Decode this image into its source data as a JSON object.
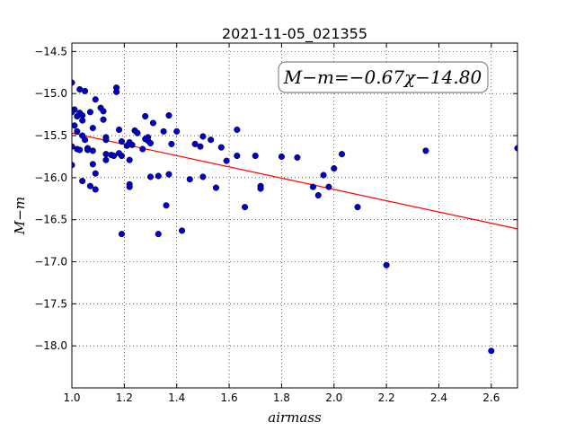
{
  "chart_data": {
    "type": "scatter",
    "title": "2021-11-05_021355",
    "xlabel": "airmass",
    "ylabel": "M−m",
    "xlim": [
      1.0,
      2.7
    ],
    "ylim": [
      -18.5,
      -14.4
    ],
    "x_ticks": [
      1.0,
      1.2,
      1.4,
      1.6,
      1.8,
      2.0,
      2.2,
      2.4,
      2.6
    ],
    "y_ticks": [
      -14.5,
      -15.0,
      -15.5,
      -16.0,
      -16.5,
      -17.0,
      -17.5,
      -18.0
    ],
    "x_tick_labels": [
      "1.0",
      "1.2",
      "1.4",
      "1.6",
      "1.8",
      "2.0",
      "2.2",
      "2.4",
      "2.6"
    ],
    "y_tick_labels": [
      "−14.5",
      "−15.0",
      "−15.5",
      "−16.0",
      "−16.5",
      "−17.0",
      "−17.5",
      "−18.0"
    ],
    "grid": true,
    "annotation": "M−m=−0.67χ−14.80",
    "fit_line": {
      "slope": -0.67,
      "intercept": -14.8,
      "color": "#ff0000"
    },
    "marker_color": "#0000cc",
    "points": [
      [
        1.0,
        -14.87
      ],
      [
        1.01,
        -15.19
      ],
      [
        1.02,
        -15.27
      ],
      [
        1.0,
        -15.22
      ],
      [
        1.01,
        -15.38
      ],
      [
        1.02,
        -15.45
      ],
      [
        1.03,
        -14.95
      ],
      [
        1.05,
        -14.97
      ],
      [
        1.03,
        -15.23
      ],
      [
        1.04,
        -15.26
      ],
      [
        1.04,
        -15.32
      ],
      [
        1.0,
        -15.63
      ],
      [
        1.02,
        -15.66
      ],
      [
        1.03,
        -15.67
      ],
      [
        1.04,
        -15.5
      ],
      [
        1.05,
        -15.55
      ],
      [
        1.0,
        -15.85
      ],
      [
        1.06,
        -15.65
      ],
      [
        1.07,
        -15.22
      ],
      [
        1.08,
        -15.41
      ],
      [
        1.06,
        -15.67
      ],
      [
        1.08,
        -15.68
      ],
      [
        1.09,
        -15.07
      ],
      [
        1.11,
        -15.17
      ],
      [
        1.12,
        -15.21
      ],
      [
        1.12,
        -15.31
      ],
      [
        1.04,
        -16.04
      ],
      [
        1.07,
        -16.1
      ],
      [
        1.09,
        -16.14
      ],
      [
        1.09,
        -15.95
      ],
      [
        1.08,
        -15.84
      ],
      [
        1.13,
        -15.52
      ],
      [
        1.13,
        -15.55
      ],
      [
        1.13,
        -15.72
      ],
      [
        1.13,
        -15.79
      ],
      [
        1.15,
        -15.73
      ],
      [
        1.16,
        -15.74
      ],
      [
        1.17,
        -14.93
      ],
      [
        1.17,
        -14.98
      ],
      [
        1.18,
        -15.43
      ],
      [
        1.19,
        -15.57
      ],
      [
        1.18,
        -15.71
      ],
      [
        1.19,
        -15.74
      ],
      [
        1.21,
        -15.62
      ],
      [
        1.22,
        -15.58
      ],
      [
        1.22,
        -15.79
      ],
      [
        1.22,
        -16.08
      ],
      [
        1.22,
        -16.11
      ],
      [
        1.23,
        -15.61
      ],
      [
        1.24,
        -15.44
      ],
      [
        1.25,
        -15.47
      ],
      [
        1.19,
        -16.67
      ],
      [
        1.27,
        -15.66
      ],
      [
        1.28,
        -15.27
      ],
      [
        1.28,
        -15.54
      ],
      [
        1.29,
        -15.52
      ],
      [
        1.29,
        -15.56
      ],
      [
        1.3,
        -15.59
      ],
      [
        1.31,
        -15.35
      ],
      [
        1.3,
        -15.99
      ],
      [
        1.33,
        -15.98
      ],
      [
        1.35,
        -15.45
      ],
      [
        1.37,
        -15.26
      ],
      [
        1.38,
        -15.6
      ],
      [
        1.37,
        -15.96
      ],
      [
        1.36,
        -16.33
      ],
      [
        1.33,
        -16.67
      ],
      [
        1.42,
        -16.63
      ],
      [
        1.4,
        -15.45
      ],
      [
        1.45,
        -16.02
      ],
      [
        1.47,
        -15.6
      ],
      [
        1.49,
        -15.63
      ],
      [
        1.5,
        -15.99
      ],
      [
        1.5,
        -15.51
      ],
      [
        1.53,
        -15.55
      ],
      [
        1.55,
        -16.12
      ],
      [
        1.57,
        -15.64
      ],
      [
        1.59,
        -15.8
      ],
      [
        1.63,
        -15.43
      ],
      [
        1.63,
        -15.74
      ],
      [
        1.66,
        -16.35
      ],
      [
        1.7,
        -15.74
      ],
      [
        1.72,
        -16.1
      ],
      [
        1.72,
        -16.13
      ],
      [
        1.8,
        -15.75
      ],
      [
        1.86,
        -15.76
      ],
      [
        1.92,
        -16.11
      ],
      [
        1.94,
        -16.21
      ],
      [
        1.96,
        -15.97
      ],
      [
        1.98,
        -16.11
      ],
      [
        2.0,
        -15.89
      ],
      [
        2.03,
        -15.72
      ],
      [
        2.09,
        -16.35
      ],
      [
        2.2,
        -17.04
      ],
      [
        2.35,
        -15.68
      ],
      [
        2.6,
        -18.06
      ],
      [
        2.7,
        -15.65
      ]
    ]
  }
}
